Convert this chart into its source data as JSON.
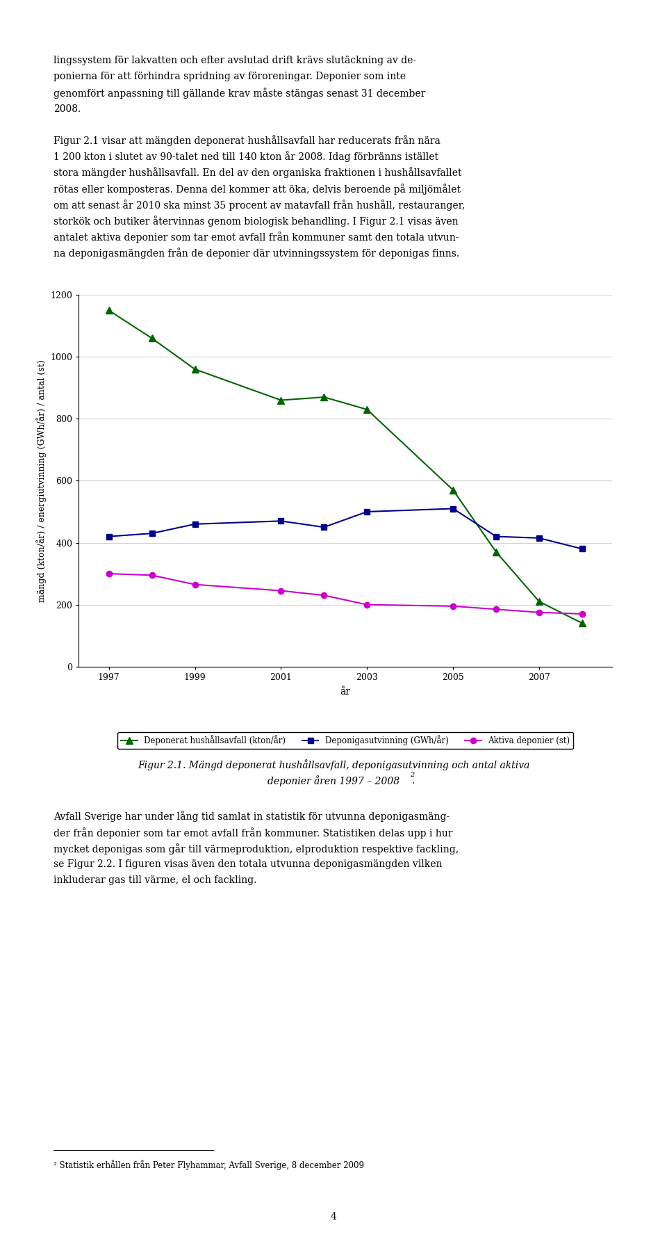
{
  "green_years": [
    1997,
    1998,
    1999,
    2001,
    2002,
    2003,
    2005,
    2006,
    2007,
    2008
  ],
  "green_values": [
    1150,
    1060,
    960,
    860,
    870,
    830,
    570,
    370,
    210,
    140
  ],
  "blue_years": [
    1997,
    1998,
    1999,
    2001,
    2002,
    2003,
    2005,
    2006,
    2007,
    2008
  ],
  "blue_values": [
    420,
    430,
    460,
    470,
    450,
    500,
    510,
    420,
    415,
    380
  ],
  "magenta_years": [
    1997,
    1998,
    1999,
    2001,
    2002,
    2003,
    2005,
    2006,
    2007,
    2008
  ],
  "magenta_values": [
    300,
    295,
    265,
    245,
    230,
    200,
    195,
    185,
    175,
    170
  ],
  "green_color": "#006400",
  "blue_color": "#00008B",
  "magenta_color": "#CC00CC",
  "xlabel": "år",
  "ylabel": "mängd (kton/år) / energiutvinning (GWh/år) / antal (st)",
  "ylim": [
    0,
    1200
  ],
  "yticks": [
    0,
    200,
    400,
    600,
    800,
    1000,
    1200
  ],
  "xticks": [
    1997,
    1999,
    2001,
    2003,
    2005,
    2007
  ],
  "legend_green": "Deponerat hushållsavfall (kton/år)",
  "legend_blue": "Deponigasutvinning (GWh/år)",
  "legend_magenta": "Aktiva deponier (st)",
  "page_text_top": [
    "lingssystem för lakvatten och efter avslutad drift krävs slutäckning av de-",
    "ponierna för att förhindra spridning av föroreningar. Deponier som inte",
    "genomfört anpassning till gällande krav måste stängas senast 31 december",
    "2008."
  ],
  "figur_text": [
    "Figur 2.1 visar att mängden deponerat hushållsavfall har reducerats från nära",
    "1 200 kton i slutet av 90-talet ned till 140 kton år 2008. Idag förbränns istället",
    "stora mängder hushållsavfall. En del av den organiska fraktionen i hushållsavfallet",
    "rötas eller komposteras. Denna del kommer att öka, delvis beroende på miljömålet",
    "om att senast år 2010 ska minst 35 procent av matavfall från hushåll, restauranger,",
    "storkök och butiker återvinnas genom biologisk behandling. I Figur 2.1 visas även",
    "antalet aktiva deponier som tar emot avfall från kommuner samt den totala utvun-",
    "na deponigasmängden från de deponier där utvinningssystem för deponigas finns."
  ],
  "caption_text": "Figur 2.1. Mängd deponerat hushållsavfall, deponigasutvinning och antal aktiva",
  "caption_text2": "deponier åren 1997 – 2008",
  "caption_superscript": "2",
  "bottom_text": [
    "Avfall Sverige har under lång tid samlat in statistik för utvunna deponigasmäng-",
    "der från deponier som tar emot avfall från kommuner. Statistiken delas upp i hur",
    "mycket deponigas som går till värmeproduktion, elproduktion respektive fackling,",
    "se Figur 2.2. I figuren visas även den totala utvunna deponigasmängden vilken",
    "inkluderar gas till värme, el och fackling."
  ],
  "footnote": "² Statistik erhållen från Peter Flyhammar, Avfall Sverige, 8 december 2009",
  "page_number": "4"
}
